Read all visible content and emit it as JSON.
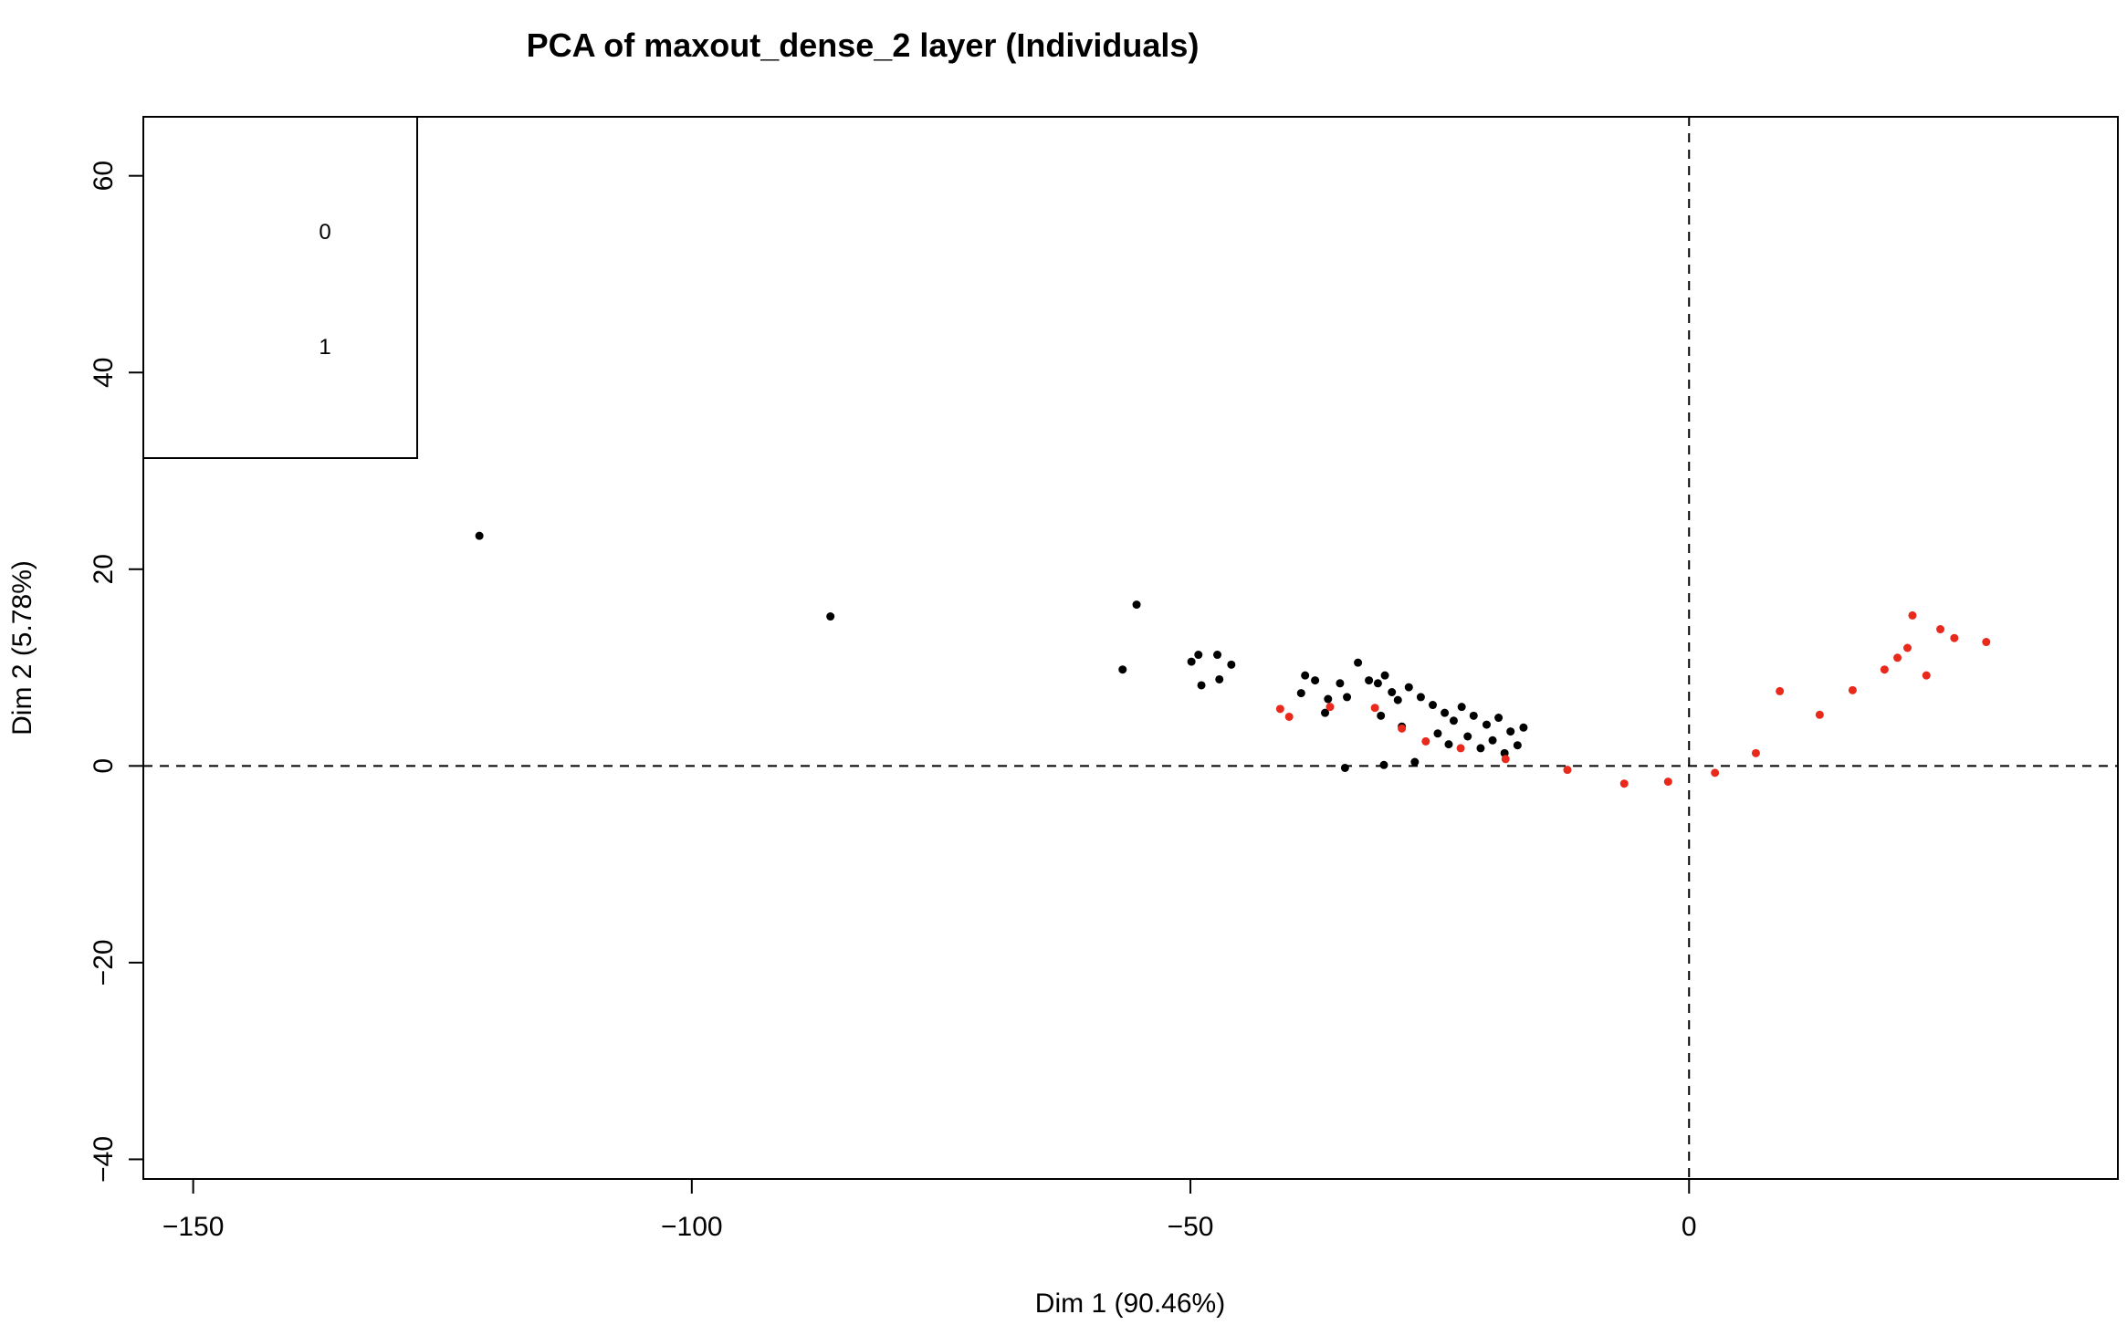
{
  "chart_data": {
    "type": "scatter",
    "title": "PCA of maxout_dense_2 layer (Individuals)",
    "xlabel": "Dim 1 (90.46%)",
    "ylabel": "Dim 2 (5.78%)",
    "xlim": [
      -155,
      43
    ],
    "ylim": [
      -42,
      66
    ],
    "xticks": [
      -150,
      -100,
      -50,
      0
    ],
    "yticks": [
      -40,
      -20,
      0,
      20,
      40,
      60
    ],
    "reference_lines": {
      "x": 0,
      "y": 0,
      "style": "dashed"
    },
    "grid": false,
    "legend": {
      "position": "top-left",
      "entries": [
        {
          "label": "0",
          "color": "#000000"
        },
        {
          "label": "1",
          "color": "#e8291c"
        }
      ]
    },
    "series": [
      {
        "name": "0",
        "color": "#000000",
        "points": [
          [
            -121.3,
            23.4
          ],
          [
            -86.1,
            15.2
          ],
          [
            -56.8,
            9.8
          ],
          [
            -55.4,
            16.4
          ],
          [
            -49.9,
            10.6
          ],
          [
            -49.2,
            11.3
          ],
          [
            -48.9,
            8.2
          ],
          [
            -47.3,
            11.3
          ],
          [
            -47.1,
            8.8
          ],
          [
            -45.9,
            10.3
          ],
          [
            -38.5,
            9.2
          ],
          [
            -38.9,
            7.4
          ],
          [
            -37.5,
            8.7
          ],
          [
            -36.2,
            6.8
          ],
          [
            -36.5,
            5.4
          ],
          [
            -35.0,
            8.4
          ],
          [
            -34.3,
            7.0
          ],
          [
            -33.2,
            10.5
          ],
          [
            -32.1,
            8.7
          ],
          [
            -31.2,
            8.4
          ],
          [
            -30.5,
            9.2
          ],
          [
            -34.5,
            -0.2
          ],
          [
            -30.6,
            0.1
          ],
          [
            -27.5,
            0.4
          ],
          [
            -30.9,
            5.1
          ],
          [
            -29.8,
            7.5
          ],
          [
            -29.2,
            6.7
          ],
          [
            -28.8,
            4.0
          ],
          [
            -28.1,
            8.0
          ],
          [
            -26.9,
            7.0
          ],
          [
            -25.7,
            6.2
          ],
          [
            -25.2,
            3.3
          ],
          [
            -24.5,
            5.4
          ],
          [
            -24.1,
            2.2
          ],
          [
            -23.6,
            4.6
          ],
          [
            -22.8,
            6.0
          ],
          [
            -22.2,
            3.0
          ],
          [
            -21.6,
            5.1
          ],
          [
            -20.9,
            1.8
          ],
          [
            -20.3,
            4.2
          ],
          [
            -19.7,
            2.6
          ],
          [
            -19.1,
            4.9
          ],
          [
            -18.5,
            1.3
          ],
          [
            -17.9,
            3.5
          ],
          [
            -17.2,
            2.1
          ],
          [
            -16.6,
            3.9
          ]
        ]
      },
      {
        "name": "1",
        "color": "#e8291c",
        "points": [
          [
            -41.0,
            5.8
          ],
          [
            -40.1,
            5.0
          ],
          [
            -36.0,
            6.0
          ],
          [
            -31.5,
            5.9
          ],
          [
            -28.8,
            3.8
          ],
          [
            -26.4,
            2.5
          ],
          [
            -22.9,
            1.8
          ],
          [
            -18.4,
            0.7
          ],
          [
            -12.2,
            -0.4
          ],
          [
            -6.5,
            -1.8
          ],
          [
            -2.1,
            -1.6
          ],
          [
            2.6,
            -0.7
          ],
          [
            6.7,
            1.3
          ],
          [
            9.1,
            7.6
          ],
          [
            13.1,
            5.2
          ],
          [
            16.4,
            7.7
          ],
          [
            19.6,
            9.8
          ],
          [
            20.9,
            11.0
          ],
          [
            21.9,
            12.0
          ],
          [
            22.4,
            15.3
          ],
          [
            23.8,
            9.2
          ],
          [
            25.2,
            13.9
          ],
          [
            26.6,
            13.0
          ],
          [
            29.8,
            12.6
          ]
        ]
      }
    ]
  }
}
